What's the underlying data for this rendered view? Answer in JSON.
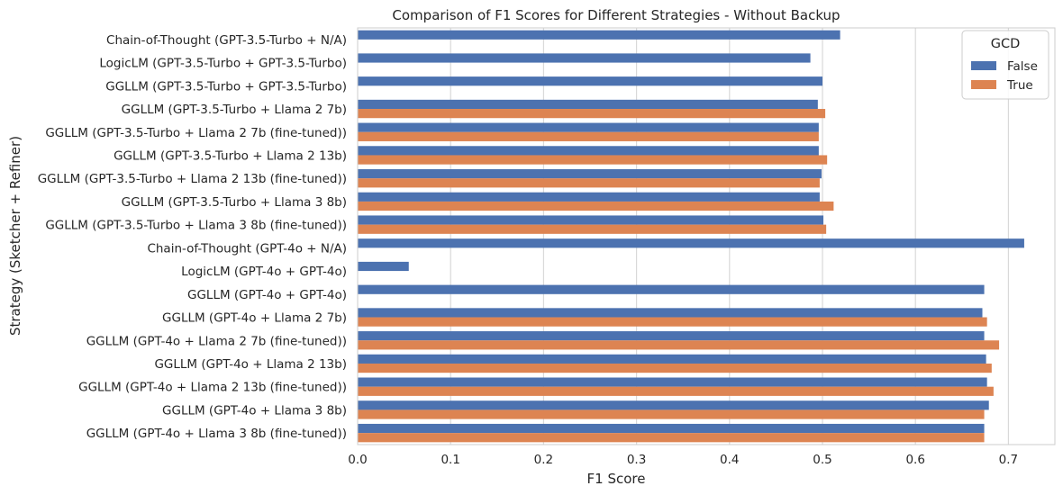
{
  "chart_data": {
    "type": "bar",
    "orientation": "horizontal",
    "title": "Comparison of F1 Scores for Different Strategies - Without Backup",
    "xlabel": "F1 Score",
    "ylabel": "Strategy (Sketcher + Refiner)",
    "xlim": [
      0,
      0.75
    ],
    "xticks": [
      0.0,
      0.1,
      0.2,
      0.3,
      0.4,
      0.5,
      0.6,
      0.7
    ],
    "xtick_labels": [
      "0.0",
      "0.1",
      "0.2",
      "0.3",
      "0.4",
      "0.5",
      "0.6",
      "0.7"
    ],
    "grid": "vertical",
    "legend": {
      "title": "GCD",
      "placement": "top-right",
      "entries": [
        "False",
        "True"
      ]
    },
    "categories": [
      "Chain-of-Thought (GPT-3.5-Turbo + N/A)",
      "LogicLM (GPT-3.5-Turbo + GPT-3.5-Turbo)",
      "GGLLM (GPT-3.5-Turbo + GPT-3.5-Turbo)",
      "GGLLM (GPT-3.5-Turbo + Llama 2 7b)",
      "GGLLM (GPT-3.5-Turbo + Llama 2 7b (fine-tuned))",
      "GGLLM (GPT-3.5-Turbo + Llama 2 13b)",
      "GGLLM (GPT-3.5-Turbo + Llama 2 13b (fine-tuned))",
      "GGLLM (GPT-3.5-Turbo + Llama 3 8b)",
      "GGLLM (GPT-3.5-Turbo + Llama 3 8b (fine-tuned))",
      "Chain-of-Thought (GPT-4o + N/A)",
      "LogicLM (GPT-4o + GPT-4o)",
      "GGLLM (GPT-4o + GPT-4o)",
      "GGLLM (GPT-4o + Llama 2 7b)",
      "GGLLM (GPT-4o + Llama 2 7b (fine-tuned))",
      "GGLLM (GPT-4o + Llama 2 13b)",
      "GGLLM (GPT-4o + Llama 2 13b (fine-tuned))",
      "GGLLM (GPT-4o + Llama 3 8b)",
      "GGLLM (GPT-4o + Llama 3 8b (fine-tuned))"
    ],
    "series": [
      {
        "name": "False",
        "color": "#4c72b0",
        "values": [
          0.519,
          0.487,
          0.5,
          0.495,
          0.496,
          0.496,
          0.499,
          0.497,
          0.501,
          0.717,
          0.055,
          0.674,
          0.672,
          0.674,
          0.676,
          0.677,
          0.679,
          0.674
        ]
      },
      {
        "name": "True",
        "color": "#dd8452",
        "values": [
          null,
          null,
          null,
          0.503,
          0.496,
          0.505,
          0.497,
          0.512,
          0.504,
          null,
          null,
          null,
          0.677,
          0.69,
          0.682,
          0.684,
          0.674,
          0.674
        ]
      }
    ]
  }
}
